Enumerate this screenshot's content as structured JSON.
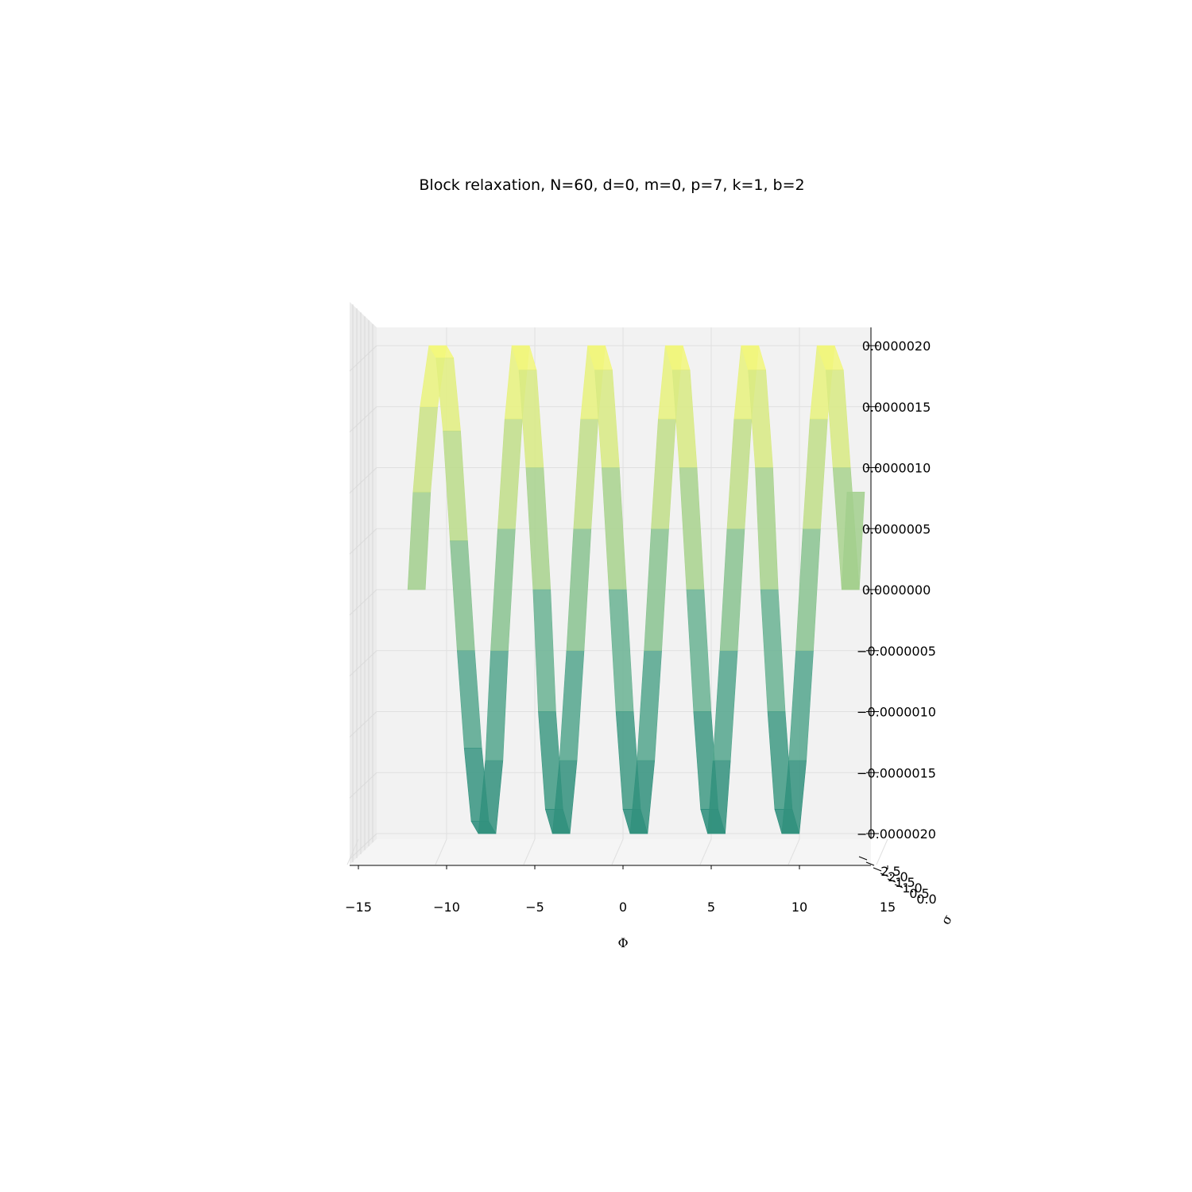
{
  "chart_data": {
    "type": "surface3d",
    "title": "Block relaxation, N=60, d=0, m=0, p=7, k=1, b=2",
    "xlabel": "Φ",
    "ylabel": "σ",
    "zlabel": "",
    "x_ticks": [
      "−15",
      "−10",
      "−5",
      "0",
      "5",
      "10",
      "15"
    ],
    "y_ticks": [
      "0.0",
      "0.5",
      "1.0",
      "1.5",
      "2.0",
      "2.5"
    ],
    "z_ticks": [
      "−0.0000020",
      "−0.0000015",
      "−0.0000010",
      "−0.0000005",
      "0.0000000",
      "0.0000005",
      "0.0000010",
      "0.0000015",
      "0.0000020"
    ],
    "xlim": [
      -15.5,
      14.0
    ],
    "zlim": [
      -2.1e-06,
      2.1e-06
    ],
    "grid": true,
    "colormap": "viridis",
    "view": "front (elevation 0)",
    "series": [
      {
        "x": [
          -12.2,
          -11.9,
          -11.5,
          -11.0,
          -10.6,
          -10.2,
          -9.8,
          -9.4,
          -9.0,
          -8.6,
          -8.2,
          -7.8,
          -7.5,
          -7.1,
          -6.7,
          -6.3,
          -5.9,
          -5.5,
          -5.1,
          -4.8,
          -4.4,
          -4.0,
          -3.6,
          -3.2,
          -2.8,
          -2.4,
          -2.0,
          -1.6,
          -1.2,
          -0.8,
          -0.4,
          0.0,
          0.4,
          0.8,
          1.2,
          1.6,
          2.0,
          2.4,
          2.8,
          3.2,
          3.6,
          4.0,
          4.4,
          4.8,
          5.1,
          5.5,
          5.9,
          6.3,
          6.7,
          7.1,
          7.5,
          7.8,
          8.2,
          8.6,
          9.0,
          9.4,
          9.8,
          10.2,
          10.6,
          11.0,
          11.5,
          11.9,
          12.4,
          12.7
        ],
        "z": [
          0.0,
          8e-07,
          1.5e-06,
          2e-06,
          1.9e-06,
          1.3e-06,
          4e-07,
          -5e-07,
          -1.3e-06,
          -1.9e-06,
          -2e-06,
          -1.4e-06,
          -5e-07,
          5e-07,
          1.4e-06,
          2e-06,
          1.8e-06,
          1e-06,
          0.0,
          -1e-06,
          -1.8e-06,
          -2e-06,
          -1.4e-06,
          -5e-07,
          5e-07,
          1.4e-06,
          2e-06,
          1.8e-06,
          1e-06,
          0.0,
          -1e-06,
          -1.8e-06,
          -2e-06,
          -1.4e-06,
          -5e-07,
          5e-07,
          1.4e-06,
          2e-06,
          1.8e-06,
          1e-06,
          0.0,
          -1e-06,
          -1.8e-06,
          -2e-06,
          -1.4e-06,
          -5e-07,
          5e-07,
          1.4e-06,
          2e-06,
          1.8e-06,
          1e-06,
          0.0,
          -1e-06,
          -1.8e-06,
          -2e-06,
          -1.4e-06,
          -5e-07,
          5e-07,
          1.4e-06,
          2e-06,
          1.8e-06,
          1e-06,
          0.0,
          8e-07
        ]
      }
    ]
  }
}
